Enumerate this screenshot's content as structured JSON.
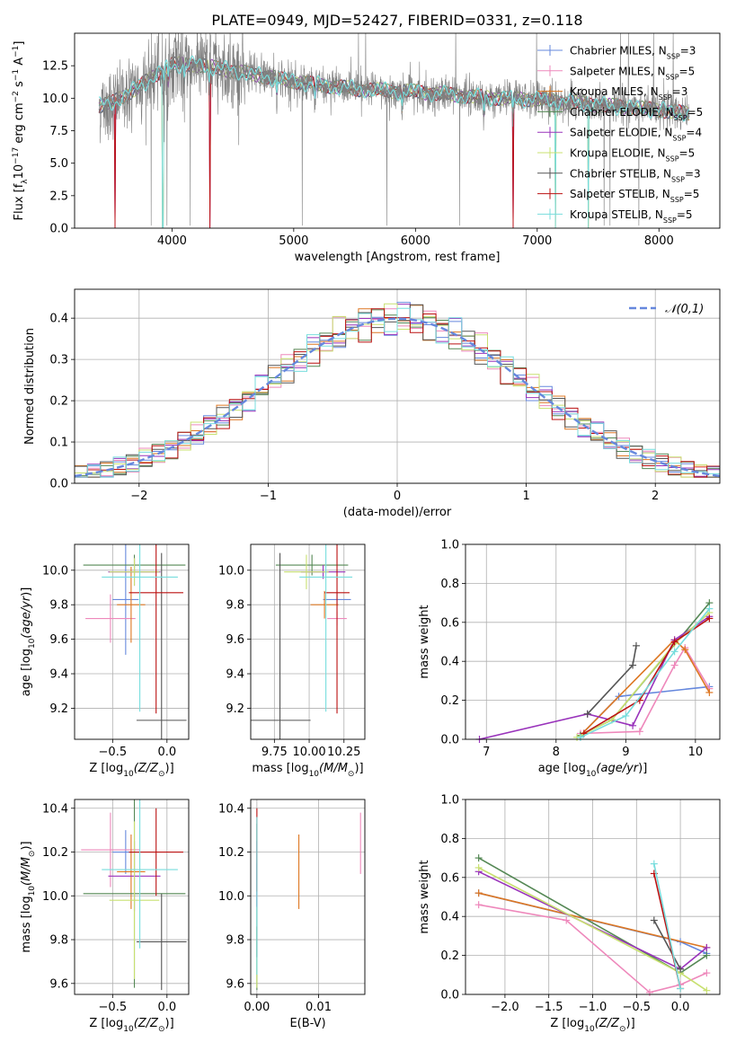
{
  "figure": {
    "title": "PLATE=0949, MJD=52427, FIBERID=0331, z=0.118"
  },
  "series": [
    {
      "name": "Chabrier MILES",
      "nssp": "3",
      "color": "#6688dd"
    },
    {
      "name": "Salpeter MILES",
      "nssp": "5",
      "color": "#ee88bb"
    },
    {
      "name": "Kroupa MILES",
      "nssp": "3",
      "color": "#dd7722"
    },
    {
      "name": "Chabrier ELODIE",
      "nssp": "5",
      "color": "#558855"
    },
    {
      "name": "Salpeter ELODIE",
      "nssp": "4",
      "color": "#9933bb"
    },
    {
      "name": "Kroupa ELODIE",
      "nssp": "5",
      "color": "#c8e070"
    },
    {
      "name": "Chabrier STELIB",
      "nssp": "3",
      "color": "#555555"
    },
    {
      "name": "Salpeter STELIB",
      "nssp": "5",
      "color": "#bb1111"
    },
    {
      "name": "Kroupa STELIB",
      "nssp": "5",
      "color": "#77dddd"
    }
  ],
  "chart_data": [
    {
      "id": "spectrum",
      "type": "line",
      "xlabel": "wavelength [Angstrom, rest frame]",
      "ylabel": "Flux [f_λ 10^-17 erg cm^-2 s^-1 A^-1]",
      "xlim": [
        3200,
        8500
      ],
      "ylim": [
        0,
        15
      ],
      "xticks": [
        4000,
        5000,
        6000,
        7000,
        8000
      ],
      "yticks": [
        0.0,
        2.5,
        5.0,
        7.5,
        10.0,
        12.5
      ],
      "legend": "top-right",
      "data_range": [
        3400,
        8250
      ],
      "continuum": [
        [
          3400,
          9.4
        ],
        [
          3500,
          9.6
        ],
        [
          3700,
          10.7
        ],
        [
          3900,
          12.0
        ],
        [
          4000,
          12.6
        ],
        [
          4200,
          12.6
        ],
        [
          4500,
          12.1
        ],
        [
          5000,
          11.3
        ],
        [
          5500,
          10.7
        ],
        [
          6000,
          10.5
        ],
        [
          6500,
          10.1
        ],
        [
          7000,
          9.9
        ],
        [
          7500,
          9.5
        ],
        [
          8000,
          9.1
        ],
        [
          8250,
          8.8
        ]
      ],
      "absorption_lines": [
        3934,
        3969,
        4102,
        4304,
        4861,
        5175,
        5890,
        6563,
        6800
      ],
      "model_dips": [
        3530,
        3925,
        4310,
        6800,
        7150,
        7420
      ]
    },
    {
      "id": "residuals",
      "type": "bar",
      "xlabel": "(data-model)/error",
      "ylabel": "Normed distribution",
      "xlim": [
        -2.5,
        2.5
      ],
      "ylim": [
        0,
        0.47
      ],
      "xticks": [
        -2,
        -1,
        0,
        1,
        2
      ],
      "yticks": [
        0.0,
        0.1,
        0.2,
        0.3,
        0.4
      ],
      "bin_width": 0.1,
      "grid": true,
      "reference": {
        "name": "𝒩(0,1)",
        "mean": 0,
        "sigma": 1,
        "color": "#6688dd",
        "style": "dashed"
      },
      "legend": "top-right"
    },
    {
      "id": "age_vs_Z",
      "type": "scatter",
      "xlabel": "Z [log10(Z/Z⊙)]",
      "ylabel": "age  [log10(age/yr)]",
      "xlim": [
        -0.85,
        0.2
      ],
      "ylim": [
        9.02,
        10.15
      ],
      "xticks": [
        -0.5,
        0.0
      ],
      "yticks": [
        9.2,
        9.4,
        9.6,
        9.8,
        10.0
      ],
      "grid": true,
      "points": [
        {
          "series": 0,
          "x": -0.38,
          "xerr": 0.12,
          "y": 9.83,
          "yerr": 0.32
        },
        {
          "series": 1,
          "x": -0.52,
          "xerr": 0.23,
          "y": 9.72,
          "yerr": 0.14
        },
        {
          "series": 2,
          "x": -0.33,
          "xerr": 0.13,
          "y": 9.8,
          "yerr": 0.22
        },
        {
          "series": 3,
          "x": -0.3,
          "xerr": 0.47,
          "y": 10.03,
          "yerr": 0.06
        },
        {
          "series": 4,
          "x": -0.3,
          "xerr": 0.24,
          "y": 9.99,
          "yerr": 0.08
        },
        {
          "series": 5,
          "x": -0.3,
          "xerr": 0.23,
          "y": 9.99,
          "yerr": 0.08
        },
        {
          "series": 6,
          "x": -0.05,
          "xerr": 0.23,
          "y": 9.13,
          "yerr": 0.97
        },
        {
          "series": 7,
          "x": -0.1,
          "xerr": 0.25,
          "y": 9.87,
          "yerr": 0.7
        },
        {
          "series": 8,
          "x": -0.25,
          "xerr": 0.35,
          "y": 9.96,
          "yerr": 0.78
        }
      ]
    },
    {
      "id": "age_vs_mass",
      "type": "scatter",
      "xlabel": "mass [log10(M/M⊙)]",
      "ylabel": "",
      "xlim": [
        9.58,
        10.4
      ],
      "ylim": [
        9.02,
        10.15
      ],
      "xticks": [
        9.75,
        10.0,
        10.25
      ],
      "yticks": [
        9.2,
        9.4,
        9.6,
        9.8,
        10.0
      ],
      "grid": true,
      "points": [
        {
          "series": 0,
          "x": 10.2,
          "xerr": 0.1,
          "y": 9.83,
          "yerr": 0.04
        },
        {
          "series": 1,
          "x": 10.2,
          "xerr": 0.07,
          "y": 9.72,
          "yerr": 0.04
        },
        {
          "series": 2,
          "x": 10.11,
          "xerr": 0.1,
          "y": 9.8,
          "yerr": 0.08
        },
        {
          "series": 3,
          "x": 10.02,
          "xerr": 0.26,
          "y": 10.03,
          "yerr": 0.06
        },
        {
          "series": 4,
          "x": 10.1,
          "xerr": 0.16,
          "y": 9.99,
          "yerr": 0.04
        },
        {
          "series": 5,
          "x": 9.98,
          "xerr": 0.16,
          "y": 9.99,
          "yerr": 0.1
        },
        {
          "series": 6,
          "x": 9.79,
          "xerr": 0.22,
          "y": 9.13,
          "yerr": 0.97
        },
        {
          "series": 7,
          "x": 10.2,
          "xerr": 0.09,
          "y": 9.87,
          "yerr": 0.7
        },
        {
          "series": 8,
          "x": 10.12,
          "xerr": 0.19,
          "y": 9.96,
          "yerr": 0.78
        }
      ]
    },
    {
      "id": "weight_vs_age",
      "type": "line",
      "xlabel": "age  [log10(age/yr)]",
      "ylabel": "mass weight",
      "xlim": [
        6.7,
        10.35
      ],
      "ylim": [
        0,
        1
      ],
      "xticks": [
        7,
        8,
        9,
        10
      ],
      "yticks": [
        0.0,
        0.2,
        0.4,
        0.6,
        0.8,
        1.0
      ],
      "grid": true,
      "lines": [
        {
          "series": 0,
          "x": [
            8.35,
            8.9,
            10.2
          ],
          "y": [
            0.02,
            0.22,
            0.27
          ]
        },
        {
          "series": 1,
          "x": [
            8.35,
            9.2,
            9.7,
            9.85,
            10.2
          ],
          "y": [
            0.03,
            0.04,
            0.38,
            0.47,
            0.26
          ]
        },
        {
          "series": 2,
          "x": [
            8.35,
            9.7,
            9.85,
            10.2
          ],
          "y": [
            0.02,
            0.51,
            0.46,
            0.24
          ]
        },
        {
          "series": 3,
          "x": [
            8.35,
            8.8,
            10.2
          ],
          "y": [
            0.02,
            0.1,
            0.7
          ]
        },
        {
          "series": 4,
          "x": [
            6.9,
            8.45,
            9.1,
            9.7,
            10.2
          ],
          "y": [
            0.0,
            0.13,
            0.07,
            0.51,
            0.63
          ]
        },
        {
          "series": 5,
          "x": [
            8.3,
            8.8,
            9.7,
            10.2
          ],
          "y": [
            0.01,
            0.1,
            0.49,
            0.65
          ]
        },
        {
          "series": 6,
          "x": [
            8.45,
            9.1,
            9.15
          ],
          "y": [
            0.13,
            0.38,
            0.48
          ]
        },
        {
          "series": 7,
          "x": [
            8.4,
            9.2,
            9.7,
            10.2
          ],
          "y": [
            0.03,
            0.2,
            0.5,
            0.62
          ]
        },
        {
          "series": 8,
          "x": [
            8.35,
            9.0,
            9.7,
            10.2
          ],
          "y": [
            0.01,
            0.12,
            0.45,
            0.67
          ]
        }
      ]
    },
    {
      "id": "mass_vs_Z",
      "type": "scatter",
      "xlabel": "Z [log10(Z/Z⊙)]",
      "ylabel": "mass [log10(M/M⊙)]",
      "xlim": [
        -0.85,
        0.2
      ],
      "ylim": [
        9.55,
        10.44
      ],
      "xticks": [
        -0.5,
        0.0
      ],
      "yticks": [
        9.6,
        9.8,
        10.0,
        10.2,
        10.4
      ],
      "grid": true,
      "points": [
        {
          "series": 0,
          "x": -0.38,
          "xerr": 0.12,
          "y": 10.2,
          "yerr": 0.1
        },
        {
          "series": 1,
          "x": -0.52,
          "xerr": 0.27,
          "y": 10.21,
          "yerr": 0.17
        },
        {
          "series": 2,
          "x": -0.33,
          "xerr": 0.13,
          "y": 10.11,
          "yerr": 0.17
        },
        {
          "series": 3,
          "x": -0.3,
          "xerr": 0.47,
          "y": 10.01,
          "yerr": 0.43
        },
        {
          "series": 4,
          "x": -0.3,
          "xerr": 0.24,
          "y": 10.09,
          "yerr": 0.16
        },
        {
          "series": 5,
          "x": -0.3,
          "xerr": 0.23,
          "y": 9.98,
          "yerr": 0.36
        },
        {
          "series": 6,
          "x": -0.05,
          "xerr": 0.23,
          "y": 9.79,
          "yerr": 0.22
        },
        {
          "series": 7,
          "x": -0.1,
          "xerr": 0.25,
          "y": 10.2,
          "yerr": 0.2
        },
        {
          "series": 8,
          "x": -0.25,
          "xerr": 0.35,
          "y": 10.12,
          "yerr": 0.36
        }
      ]
    },
    {
      "id": "mass_vs_ebv",
      "type": "scatter",
      "xlabel": "E(B-V)",
      "ylabel": "",
      "xlim": [
        -0.001,
        0.0175
      ],
      "ylim": [
        9.55,
        10.44
      ],
      "xticks": [
        0.0,
        0.01
      ],
      "yticks": [
        9.6,
        9.8,
        10.0,
        10.2,
        10.4
      ],
      "grid": true,
      "points": [
        {
          "series": 0,
          "x": 0.0,
          "y": 10.05,
          "yerr": 0.1
        },
        {
          "series": 1,
          "x": 0.0168,
          "y": 10.24,
          "yerr": 0.14
        },
        {
          "series": 2,
          "x": 0.0068,
          "y": 10.11,
          "yerr": 0.17
        },
        {
          "series": 3,
          "x": 0.0,
          "y": 9.95,
          "yerr": 0.38
        },
        {
          "series": 4,
          "x": 0.0,
          "y": 10.1,
          "yerr": 0.15
        },
        {
          "series": 5,
          "x": 0.0,
          "y": 9.72,
          "yerr": 0.14
        },
        {
          "series": 6,
          "x": 0.0,
          "y": 9.79,
          "yerr": 0.07
        },
        {
          "series": 7,
          "x": 0.0,
          "y": 10.21,
          "yerr": 0.19
        },
        {
          "series": 8,
          "x": 0.0,
          "y": 10.0,
          "yerr": 0.36
        }
      ]
    },
    {
      "id": "weight_vs_Z",
      "type": "line",
      "xlabel": "Z [log10(Z/Z⊙)]",
      "ylabel": "mass weight",
      "xlim": [
        -2.45,
        0.45
      ],
      "ylim": [
        0,
        1
      ],
      "xticks": [
        -2.0,
        -1.5,
        -1.0,
        -0.5,
        0.0
      ],
      "yticks": [
        0.0,
        0.2,
        0.4,
        0.6,
        0.8,
        1.0
      ],
      "grid": true,
      "lines": [
        {
          "series": 0,
          "x": [
            -2.3,
            0.0,
            0.3
          ],
          "y": [
            0.52,
            0.27,
            0.21
          ]
        },
        {
          "series": 1,
          "x": [
            -2.3,
            -1.3,
            -0.35,
            0.0,
            0.3
          ],
          "y": [
            0.46,
            0.38,
            0.01,
            0.05,
            0.11
          ]
        },
        {
          "series": 2,
          "x": [
            -2.3,
            0.3
          ],
          "y": [
            0.52,
            0.24
          ]
        },
        {
          "series": 3,
          "x": [
            -2.3,
            0.0,
            0.3
          ],
          "y": [
            0.7,
            0.11,
            0.2
          ]
        },
        {
          "series": 4,
          "x": [
            -2.3,
            0.0,
            0.3
          ],
          "y": [
            0.63,
            0.13,
            0.24
          ]
        },
        {
          "series": 5,
          "x": [
            -2.3,
            0.0,
            0.3
          ],
          "y": [
            0.65,
            0.11,
            0.02
          ]
        },
        {
          "series": 6,
          "x": [
            -0.3,
            0.0
          ],
          "y": [
            0.38,
            0.13
          ]
        },
        {
          "series": 7,
          "x": [
            -0.3,
            0.0
          ],
          "y": [
            0.62,
            0.03
          ]
        },
        {
          "series": 8,
          "x": [
            -0.3,
            0.0
          ],
          "y": [
            0.67,
            0.03
          ]
        }
      ]
    }
  ]
}
